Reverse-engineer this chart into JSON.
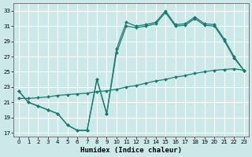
{
  "xlabel": "Humidex (Indice chaleur)",
  "background_color": "#cce8e8",
  "grid_color": "#ffffff",
  "line_color": "#1a7a6e",
  "xlim": [
    -0.5,
    23.5
  ],
  "ylim": [
    16.5,
    34.0
  ],
  "xticks": [
    0,
    1,
    2,
    3,
    4,
    5,
    6,
    7,
    8,
    9,
    10,
    11,
    12,
    13,
    14,
    15,
    16,
    17,
    18,
    19,
    20,
    21,
    22,
    23
  ],
  "yticks": [
    17,
    19,
    21,
    23,
    25,
    27,
    29,
    31,
    33
  ],
  "line1_x": [
    0,
    1,
    2,
    3,
    4,
    5,
    6,
    7,
    8,
    9,
    10,
    11,
    12,
    13,
    14,
    15,
    16,
    17,
    18,
    19,
    20,
    21,
    22,
    23
  ],
  "line1_y": [
    22.5,
    21.0,
    20.5,
    20.0,
    19.5,
    18.0,
    17.3,
    17.3,
    24.0,
    19.5,
    28.0,
    31.5,
    31.0,
    31.2,
    31.5,
    33.0,
    31.2,
    31.3,
    32.2,
    31.3,
    31.2,
    29.3,
    27.0,
    25.2
  ],
  "line2_x": [
    0,
    1,
    2,
    3,
    4,
    5,
    6,
    7,
    8,
    9,
    10,
    11,
    12,
    13,
    14,
    15,
    16,
    17,
    18,
    19,
    20,
    21,
    22,
    23
  ],
  "line2_y": [
    22.5,
    21.0,
    20.5,
    20.0,
    19.5,
    18.0,
    17.3,
    17.3,
    24.0,
    19.5,
    27.5,
    31.0,
    30.8,
    31.0,
    31.3,
    32.8,
    31.0,
    31.1,
    32.0,
    31.1,
    31.0,
    29.1,
    26.8,
    25.2
  ],
  "line3_x": [
    0,
    1,
    2,
    3,
    4,
    5,
    6,
    7,
    8,
    9,
    10,
    11,
    12,
    13,
    14,
    15,
    16,
    17,
    18,
    19,
    20,
    21,
    22,
    23
  ],
  "line3_y": [
    21.5,
    21.5,
    21.6,
    21.7,
    21.9,
    22.0,
    22.1,
    22.2,
    22.4,
    22.5,
    22.7,
    23.0,
    23.2,
    23.5,
    23.8,
    24.0,
    24.3,
    24.5,
    24.8,
    25.0,
    25.2,
    25.3,
    25.4,
    25.2
  ]
}
